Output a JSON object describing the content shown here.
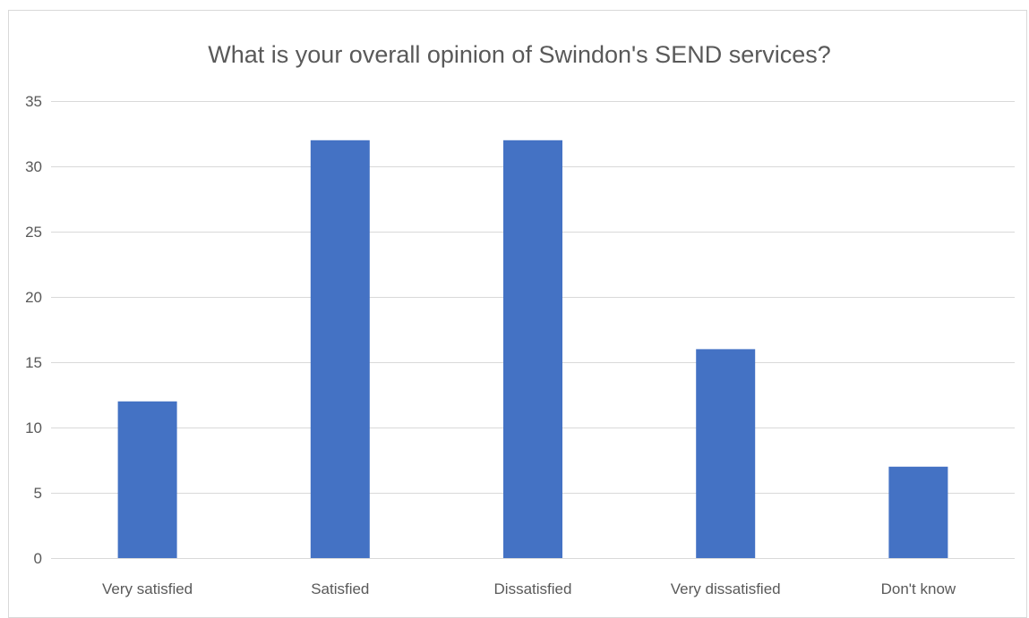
{
  "chart_data": {
    "type": "bar",
    "title": "What is your overall opinion of Swindon's SEND services?",
    "categories": [
      "Very satisfied",
      "Satisfied",
      "Dissatisfied",
      "Very dissatisfied",
      "Don't know"
    ],
    "values": [
      12,
      32,
      32,
      16,
      7
    ],
    "ylim": [
      0,
      35
    ],
    "yticks": [
      0,
      5,
      10,
      15,
      20,
      25,
      30,
      35
    ],
    "xlabel": "",
    "ylabel": "",
    "grid": true,
    "legend": "none",
    "bar_color": "#4472c4",
    "grid_color": "#d9d9d9",
    "text_color": "#595959"
  }
}
